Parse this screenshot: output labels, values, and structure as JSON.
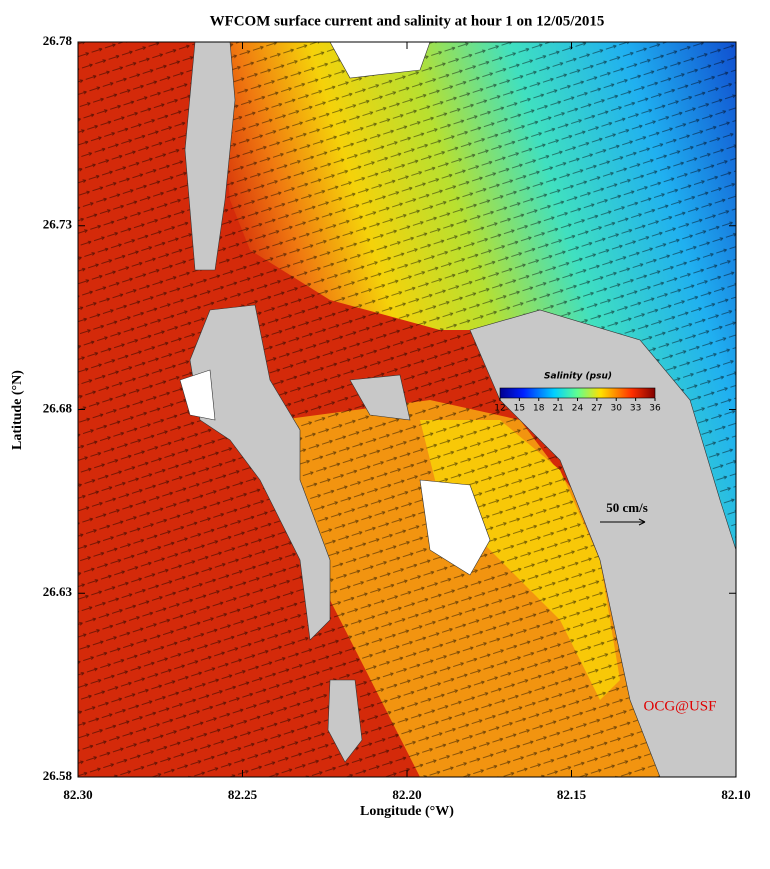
{
  "chart_data": {
    "type": "map",
    "title": "WFCOM surface current and salinity at hour 1 on 12/05/2015",
    "x_label": "Longitude (°W)",
    "y_label": "Latitude (°N)",
    "xlim": [
      82.3,
      82.1
    ],
    "xticks": [
      {
        "value": 82.3,
        "label": "82.30"
      },
      {
        "value": 82.25,
        "label": "82.25"
      },
      {
        "value": 82.2,
        "label": "82.20"
      },
      {
        "value": 82.15,
        "label": "82.15"
      },
      {
        "value": 82.1,
        "label": "82.10"
      }
    ],
    "ylim": [
      26.58,
      26.78
    ],
    "yticks": [
      26.58,
      26.63,
      26.68,
      26.73,
      26.78
    ],
    "colorbar": {
      "title": "Salinity (psu)",
      "lim": [
        12,
        36
      ],
      "ticks": [
        12,
        15,
        18,
        21,
        24,
        27,
        30,
        33,
        36
      ]
    },
    "scale_label": "50 cm/s",
    "credit": "OCG@USF"
  }
}
